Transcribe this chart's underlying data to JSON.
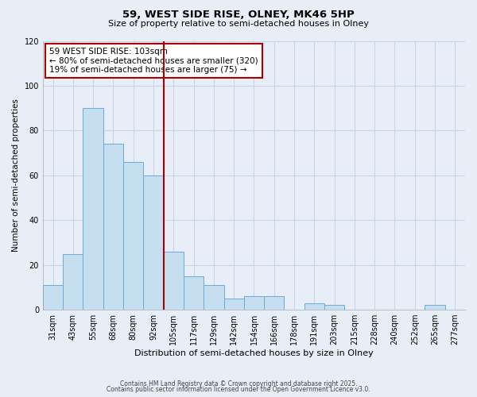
{
  "title": "59, WEST SIDE RISE, OLNEY, MK46 5HP",
  "subtitle": "Size of property relative to semi-detached houses in Olney",
  "xlabel": "Distribution of semi-detached houses by size in Olney",
  "ylabel": "Number of semi-detached properties",
  "bar_labels": [
    "31sqm",
    "43sqm",
    "55sqm",
    "68sqm",
    "80sqm",
    "92sqm",
    "105sqm",
    "117sqm",
    "129sqm",
    "142sqm",
    "154sqm",
    "166sqm",
    "178sqm",
    "191sqm",
    "203sqm",
    "215sqm",
    "228sqm",
    "240sqm",
    "252sqm",
    "265sqm",
    "277sqm"
  ],
  "bar_values": [
    11,
    25,
    90,
    74,
    66,
    60,
    26,
    15,
    11,
    5,
    6,
    6,
    0,
    3,
    2,
    0,
    0,
    0,
    0,
    2,
    0
  ],
  "bar_color": "#c5dff0",
  "bar_edge_color": "#6aaad4",
  "vline_x_idx": 6,
  "vline_color": "#aa0000",
  "ylim": [
    0,
    120
  ],
  "yticks": [
    0,
    20,
    40,
    60,
    80,
    100,
    120
  ],
  "annotation_title": "59 WEST SIDE RISE: 103sqm",
  "annotation_line1": "← 80% of semi-detached houses are smaller (320)",
  "annotation_line2": "19% of semi-detached houses are larger (75) →",
  "annotation_box_color": "#ffffff",
  "annotation_box_edge": "#aa0000",
  "grid_color": "#c8d4e8",
  "background_color": "#e8eef8",
  "footer1": "Contains HM Land Registry data © Crown copyright and database right 2025.",
  "footer2": "Contains public sector information licensed under the Open Government Licence v3.0."
}
